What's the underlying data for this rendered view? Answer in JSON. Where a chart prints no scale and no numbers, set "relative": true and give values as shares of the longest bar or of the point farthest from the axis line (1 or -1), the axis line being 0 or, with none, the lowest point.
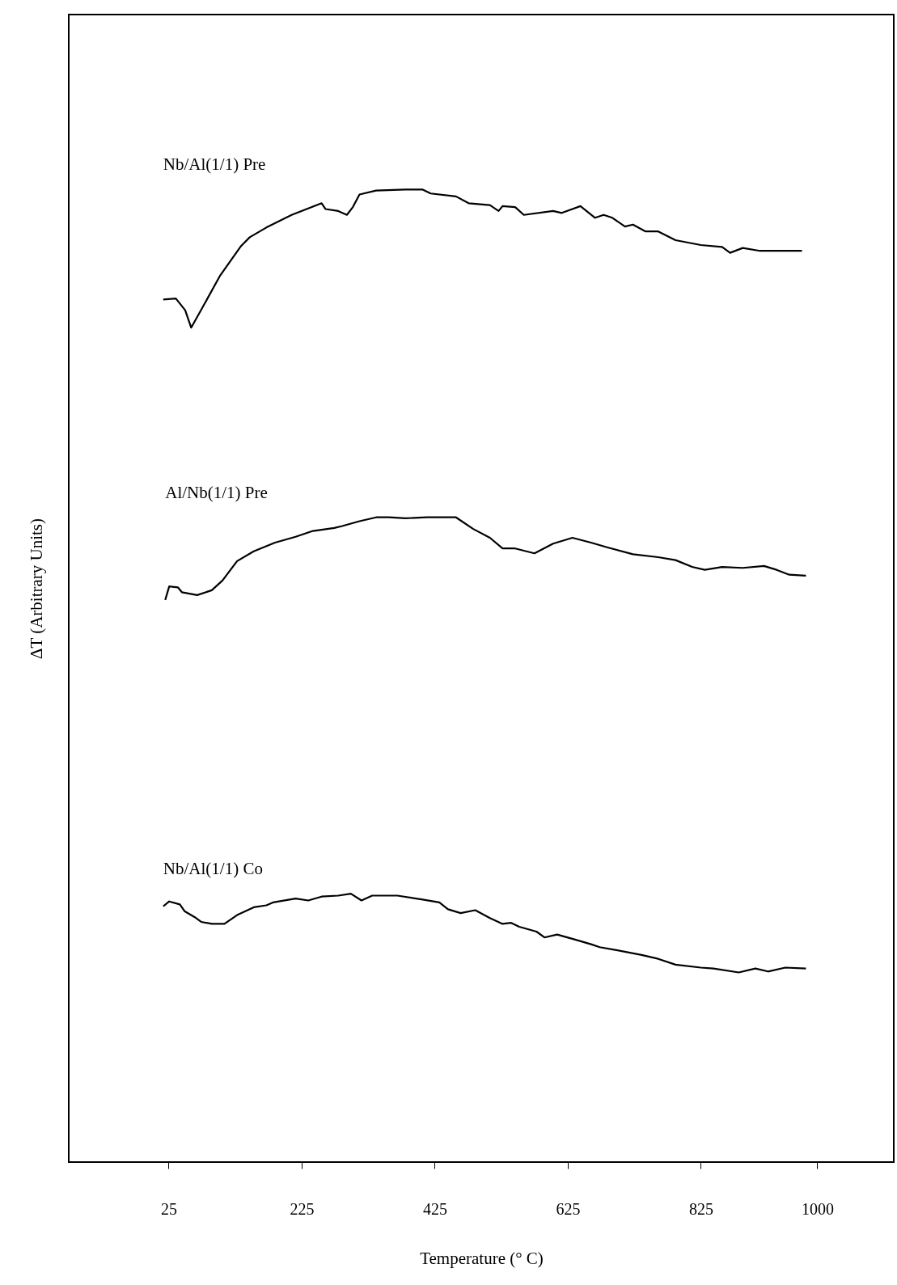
{
  "chart_data": {
    "type": "line",
    "relative": true,
    "xlabel": "Temperature (° C)",
    "ylabel": "ΔT (Arbitrary Units)",
    "xlim": [
      -125,
      1115
    ],
    "xticks": [
      25,
      225,
      425,
      625,
      825,
      1000
    ],
    "grid": false,
    "marker": "none",
    "line_style": "solid",
    "series": [
      {
        "name": "Nb/Al(1/1) Pre",
        "color": "#000000",
        "x": [
          17,
          36,
          50,
          59,
          77,
          102,
          134,
          147,
          172,
          210,
          255,
          261,
          280,
          293,
          302,
          312,
          337,
          381,
          407,
          419,
          457,
          476,
          508,
          521,
          527,
          546,
          559,
          603,
          616,
          644,
          666,
          679,
          692,
          711,
          723,
          742,
          761,
          787,
          825,
          857,
          869,
          888,
          914,
          939,
          977
        ],
        "values": [
          0.887,
          0.888,
          0.876,
          0.858,
          0.88,
          0.911,
          0.942,
          0.951,
          0.961,
          0.974,
          0.986,
          0.98,
          0.978,
          0.974,
          0.982,
          0.995,
          0.999,
          1.0,
          1.0,
          0.996,
          0.993,
          0.986,
          0.984,
          0.978,
          0.983,
          0.982,
          0.974,
          0.978,
          0.976,
          0.983,
          0.971,
          0.974,
          0.971,
          0.962,
          0.964,
          0.957,
          0.957,
          0.948,
          0.943,
          0.941,
          0.935,
          0.94,
          0.937,
          0.937,
          0.937
        ]
      },
      {
        "name": "Al/Nb(1/1) Pre",
        "color": "#000000",
        "x": [
          20,
          26,
          39,
          45,
          68,
          90,
          106,
          128,
          153,
          185,
          216,
          242,
          274,
          286,
          312,
          337,
          356,
          381,
          413,
          457,
          483,
          508,
          527,
          546,
          575,
          603,
          632,
          660,
          685,
          723,
          761,
          787,
          812,
          831,
          857,
          888,
          920,
          939,
          958,
          983
        ],
        "values": [
          0.578,
          0.592,
          0.591,
          0.586,
          0.583,
          0.588,
          0.598,
          0.618,
          0.628,
          0.637,
          0.643,
          0.649,
          0.652,
          0.654,
          0.659,
          0.663,
          0.663,
          0.662,
          0.663,
          0.663,
          0.651,
          0.642,
          0.631,
          0.631,
          0.626,
          0.636,
          0.642,
          0.637,
          0.632,
          0.625,
          0.622,
          0.619,
          0.612,
          0.609,
          0.612,
          0.611,
          0.613,
          0.609,
          0.604,
          0.603
        ]
      },
      {
        "name": "Nb/Al(1/1) Co",
        "color": "#000000",
        "x": [
          17,
          26,
          42,
          49,
          64,
          74,
          90,
          109,
          128,
          153,
          172,
          182,
          216,
          235,
          255,
          280,
          299,
          315,
          331,
          369,
          407,
          432,
          445,
          464,
          486,
          508,
          527,
          540,
          552,
          578,
          590,
          609,
          635,
          660,
          673,
          698,
          736,
          761,
          787,
          825,
          844,
          882,
          907,
          926,
          952,
          983
        ],
        "values": [
          0.263,
          0.268,
          0.265,
          0.258,
          0.252,
          0.247,
          0.245,
          0.245,
          0.254,
          0.262,
          0.264,
          0.267,
          0.271,
          0.269,
          0.273,
          0.274,
          0.276,
          0.269,
          0.274,
          0.274,
          0.27,
          0.267,
          0.26,
          0.256,
          0.259,
          0.251,
          0.245,
          0.246,
          0.242,
          0.237,
          0.231,
          0.234,
          0.229,
          0.224,
          0.221,
          0.218,
          0.213,
          0.209,
          0.203,
          0.2,
          0.199,
          0.195,
          0.199,
          0.196,
          0.2,
          0.199
        ]
      }
    ]
  }
}
